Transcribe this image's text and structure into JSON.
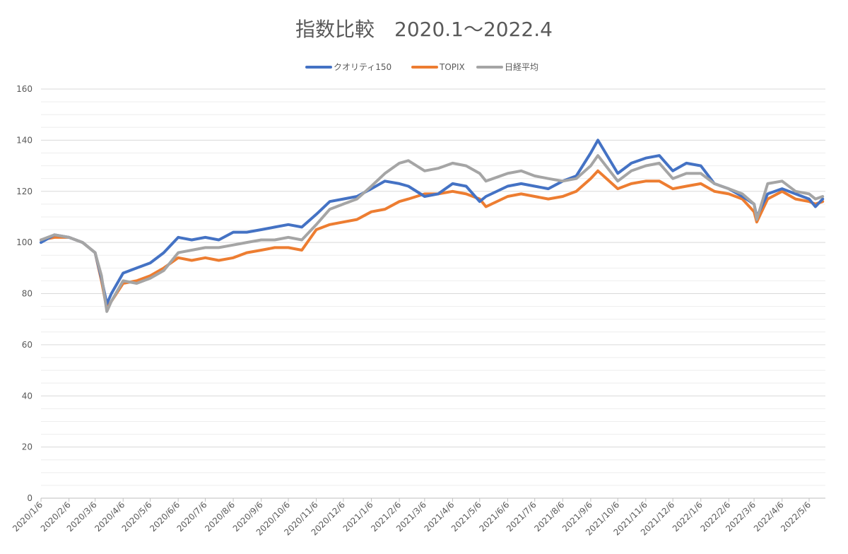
{
  "chart_data": {
    "type": "line",
    "title": "指数比較　2020.1～2022.4",
    "xlabel": "",
    "ylabel": "",
    "ylim": [
      0,
      160
    ],
    "y_ticks": [
      0,
      20,
      40,
      60,
      80,
      100,
      120,
      140,
      160
    ],
    "x_ticks": [
      "2020/1/6",
      "2020/2/6",
      "2020/3/6",
      "2020/4/6",
      "2020/5/6",
      "2020/6/6",
      "2020/7/6",
      "2020/8/6",
      "2020/9/6",
      "2020/10/6",
      "2020/11/6",
      "2020/12/6",
      "2021/1/6",
      "2021/2/6",
      "2021/3/6",
      "2021/4/6",
      "2021/5/6",
      "2021/6/6",
      "2021/7/6",
      "2021/8/6",
      "2021/9/6",
      "2021/10/6",
      "2021/11/6",
      "2021/12/6",
      "2022/1/6",
      "2022/2/6",
      "2022/3/6",
      "2022/4/6",
      "2022/5/6"
    ],
    "grid": true,
    "legend_position": "top",
    "colors": {
      "quality": "#4472C4",
      "topix": "#ED7D31",
      "nikkei": "#A5A5A5",
      "grid": "#D9D9D9",
      "axis": "#BFBFBF"
    },
    "x": [
      "2020/1/6",
      "2020/1/21",
      "2020/2/6",
      "2020/2/21",
      "2020/3/6",
      "2020/3/13",
      "2020/3/19",
      "2020/3/24",
      "2020/4/6",
      "2020/4/21",
      "2020/5/6",
      "2020/5/21",
      "2020/6/6",
      "2020/6/21",
      "2020/7/6",
      "2020/7/21",
      "2020/8/6",
      "2020/8/21",
      "2020/9/6",
      "2020/9/21",
      "2020/10/6",
      "2020/10/21",
      "2020/11/6",
      "2020/11/21",
      "2020/12/6",
      "2020/12/21",
      "2021/1/6",
      "2021/1/21",
      "2021/2/6",
      "2021/2/16",
      "2021/3/6",
      "2021/3/21",
      "2021/4/6",
      "2021/4/21",
      "2021/5/6",
      "2021/5/13",
      "2021/6/6",
      "2021/6/21",
      "2021/7/6",
      "2021/7/21",
      "2021/8/6",
      "2021/8/21",
      "2021/9/6",
      "2021/9/14",
      "2021/10/6",
      "2021/10/21",
      "2021/11/6",
      "2021/11/21",
      "2021/12/6",
      "2021/12/21",
      "2022/1/6",
      "2022/1/21",
      "2022/2/6",
      "2022/2/21",
      "2022/3/6",
      "2022/3/9",
      "2022/3/21",
      "2022/4/6",
      "2022/4/21",
      "2022/5/6",
      "2022/5/13",
      "2022/5/21"
    ],
    "series": [
      {
        "name": "クオリティ150",
        "values": [
          100,
          103,
          102,
          100,
          96,
          86,
          76,
          80,
          88,
          90,
          92,
          96,
          102,
          101,
          102,
          101,
          104,
          104,
          105,
          106,
          107,
          106,
          111,
          116,
          117,
          118,
          121,
          124,
          123,
          122,
          118,
          119,
          123,
          122,
          116,
          118,
          122,
          123,
          122,
          121,
          124,
          126,
          135,
          140,
          127,
          131,
          133,
          134,
          128,
          131,
          130,
          123,
          121,
          118,
          115,
          110,
          119,
          121,
          119,
          117,
          114,
          117
        ]
      },
      {
        "name": "TOPIX",
        "values": [
          101,
          102,
          102,
          100,
          96,
          85,
          74,
          77,
          84,
          85,
          87,
          90,
          94,
          93,
          94,
          93,
          94,
          96,
          97,
          98,
          98,
          97,
          105,
          107,
          108,
          109,
          112,
          113,
          116,
          117,
          119,
          119,
          120,
          119,
          117,
          114,
          118,
          119,
          118,
          117,
          118,
          120,
          125,
          128,
          121,
          123,
          124,
          124,
          121,
          122,
          123,
          120,
          119,
          117,
          112,
          108,
          117,
          120,
          117,
          116,
          115,
          116
        ]
      },
      {
        "name": "日経平均",
        "values": [
          101,
          103,
          102,
          100,
          96,
          87,
          73,
          77,
          85,
          84,
          86,
          89,
          96,
          97,
          98,
          98,
          99,
          100,
          101,
          101,
          102,
          101,
          107,
          113,
          115,
          117,
          122,
          127,
          131,
          132,
          128,
          129,
          131,
          130,
          127,
          124,
          127,
          128,
          126,
          125,
          124,
          125,
          130,
          134,
          124,
          128,
          130,
          131,
          125,
          127,
          127,
          123,
          121,
          119,
          115,
          109,
          123,
          124,
          120,
          119,
          117,
          118
        ]
      }
    ]
  }
}
